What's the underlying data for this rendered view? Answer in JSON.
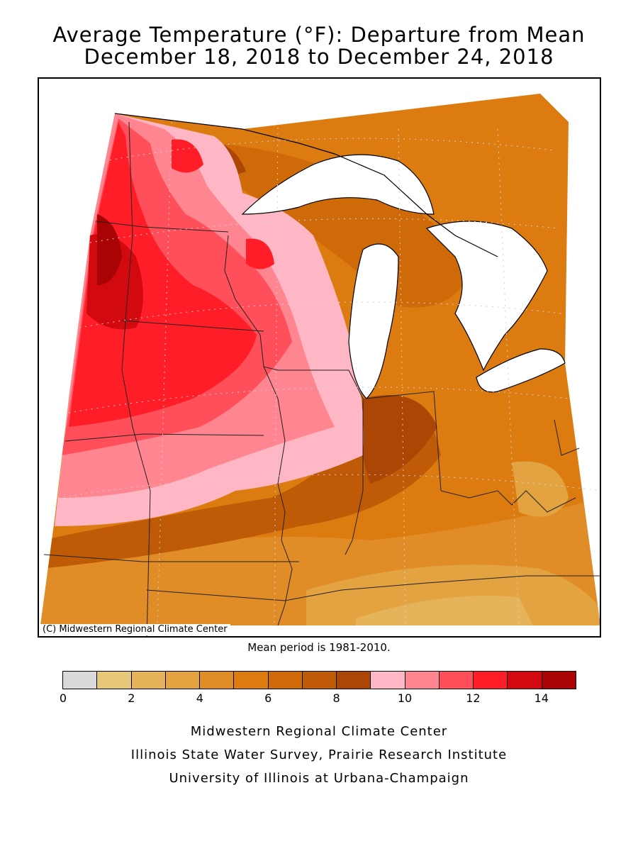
{
  "title_line1": "Average Temperature (°F): Departure from Mean",
  "title_line2": "December 18, 2018 to December 24, 2018",
  "copyright": "(C) Midwestern Regional Climate Center",
  "mean_period": "Mean period is 1981-2010.",
  "legend": {
    "colors": [
      "#d9d9d9",
      "#e6c878",
      "#e5b45a",
      "#e3a340",
      "#e08d28",
      "#dc7b10",
      "#cf6a08",
      "#bf5a06",
      "#ab4605",
      "#ffb7c5",
      "#ff8590",
      "#ff4f5a",
      "#ff1e28",
      "#d20a0f",
      "#a90303"
    ],
    "ticks": [
      "0",
      "2",
      "4",
      "6",
      "8",
      "10",
      "12",
      "14"
    ]
  },
  "credits": {
    "line1": "Midwestern Regional Climate Center",
    "line2": "Illinois State Water Survey, Prairie Research Institute",
    "line3": "University of Illinois at Urbana-Champaign"
  }
}
